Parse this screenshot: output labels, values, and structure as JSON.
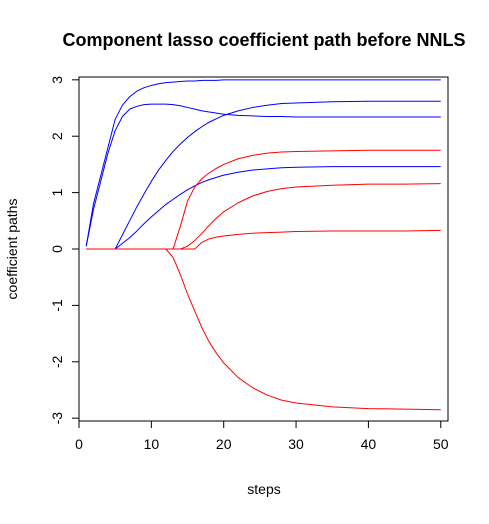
{
  "chart_data": {
    "type": "line",
    "title": "Component lasso coefficient path before NNLS",
    "xlabel": "steps",
    "ylabel": "coefficient paths",
    "xlim": [
      0,
      51
    ],
    "ylim": [
      -3.05,
      3.05
    ],
    "x_ticks": [
      0,
      10,
      20,
      30,
      40,
      50
    ],
    "y_ticks": [
      -3,
      -2,
      -1,
      0,
      1,
      2,
      3
    ],
    "grid": false,
    "legend": "none",
    "x": [
      1,
      2,
      3,
      4,
      5,
      6,
      7,
      8,
      9,
      10,
      11,
      12,
      13,
      14,
      15,
      16,
      17,
      18,
      19,
      20,
      22,
      24,
      26,
      28,
      30,
      35,
      40,
      45,
      50
    ],
    "series": [
      {
        "color": "#0000ff",
        "values": [
          0.05,
          0.8,
          1.3,
          1.8,
          2.3,
          2.55,
          2.7,
          2.8,
          2.86,
          2.9,
          2.93,
          2.95,
          2.96,
          2.97,
          2.98,
          2.98,
          2.99,
          2.99,
          2.99,
          3.0,
          3.0,
          3.0,
          3.0,
          3.0,
          3.0,
          3.0,
          3.0,
          3.0,
          3.0
        ]
      },
      {
        "color": "#0000ff",
        "values": [
          0.05,
          0.7,
          1.2,
          1.7,
          2.1,
          2.35,
          2.48,
          2.53,
          2.56,
          2.57,
          2.57,
          2.57,
          2.56,
          2.54,
          2.51,
          2.48,
          2.45,
          2.43,
          2.41,
          2.39,
          2.37,
          2.36,
          2.35,
          2.35,
          2.34,
          2.34,
          2.34,
          2.34,
          2.34
        ]
      },
      {
        "color": "#0000ff",
        "values": [
          0.0,
          0.0,
          0.0,
          0.0,
          0.0,
          0.25,
          0.5,
          0.75,
          0.98,
          1.2,
          1.4,
          1.57,
          1.73,
          1.86,
          1.98,
          2.08,
          2.17,
          2.25,
          2.31,
          2.37,
          2.45,
          2.51,
          2.55,
          2.58,
          2.59,
          2.61,
          2.62,
          2.62,
          2.62
        ]
      },
      {
        "color": "#0000ff",
        "values": [
          0.0,
          0.0,
          0.0,
          0.0,
          0.0,
          0.1,
          0.2,
          0.32,
          0.45,
          0.57,
          0.68,
          0.79,
          0.88,
          0.97,
          1.05,
          1.12,
          1.18,
          1.23,
          1.27,
          1.31,
          1.36,
          1.4,
          1.42,
          1.44,
          1.45,
          1.46,
          1.46,
          1.46,
          1.46
        ]
      },
      {
        "color": "#ff0000",
        "values": [
          0.0,
          0.0,
          0.0,
          0.0,
          0.0,
          0.0,
          0.0,
          0.0,
          0.0,
          0.0,
          0.0,
          0.0,
          0.0,
          0.4,
          0.85,
          1.1,
          1.25,
          1.35,
          1.43,
          1.5,
          1.6,
          1.66,
          1.7,
          1.72,
          1.73,
          1.74,
          1.75,
          1.75,
          1.75
        ]
      },
      {
        "color": "#ff0000",
        "values": [
          0.0,
          0.0,
          0.0,
          0.0,
          0.0,
          0.0,
          0.0,
          0.0,
          0.0,
          0.0,
          0.0,
          0.0,
          0.0,
          0.0,
          0.05,
          0.15,
          0.28,
          0.42,
          0.55,
          0.66,
          0.82,
          0.94,
          1.02,
          1.07,
          1.1,
          1.13,
          1.15,
          1.15,
          1.16
        ]
      },
      {
        "color": "#ff0000",
        "values": [
          0.0,
          0.0,
          0.0,
          0.0,
          0.0,
          0.0,
          0.0,
          0.0,
          0.0,
          0.0,
          0.0,
          0.0,
          0.0,
          0.0,
          0.0,
          0.0,
          0.12,
          0.18,
          0.21,
          0.23,
          0.26,
          0.28,
          0.29,
          0.3,
          0.31,
          0.32,
          0.32,
          0.32,
          0.33
        ]
      },
      {
        "color": "#ff0000",
        "values": [
          0.0,
          0.0,
          0.0,
          0.0,
          0.0,
          0.0,
          0.0,
          0.0,
          0.0,
          0.0,
          0.0,
          0.0,
          -0.15,
          -0.45,
          -0.8,
          -1.1,
          -1.4,
          -1.65,
          -1.85,
          -2.02,
          -2.28,
          -2.46,
          -2.59,
          -2.68,
          -2.73,
          -2.8,
          -2.83,
          -2.84,
          -2.85
        ]
      }
    ]
  }
}
